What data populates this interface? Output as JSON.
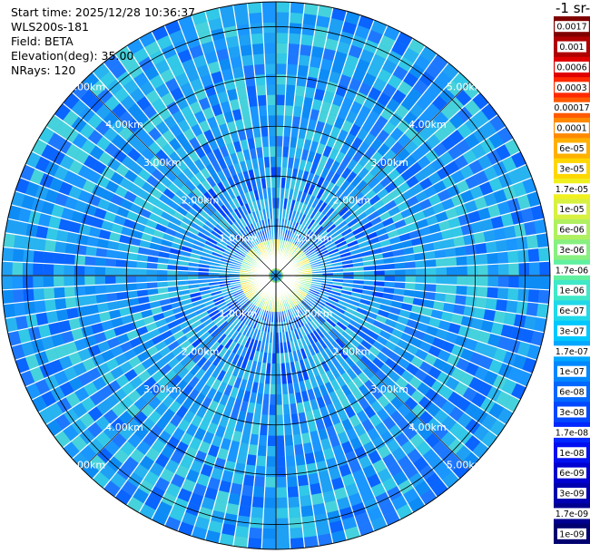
{
  "header": {
    "start_time": "Start time: 2025/12/28 10:36:37",
    "instrument": "WLS200s-181",
    "field": "Field: BETA",
    "elevation": "Elevation(deg): 35.00",
    "nrays": "NRays: 120"
  },
  "colorbar": {
    "title": "-1 sr-",
    "ticks": [
      "0.0017",
      "0.001",
      "0.0006",
      "0.0003",
      "0.00017",
      "0.0001",
      "6e-05",
      "3e-05",
      "1.7e-05",
      "1e-05",
      "6e-06",
      "3e-06",
      "1.7e-06",
      "1e-06",
      "6e-07",
      "3e-07",
      "1.7e-07",
      "1e-07",
      "6e-08",
      "3e-08",
      "1.7e-08",
      "1e-08",
      "6e-09",
      "3e-09",
      "1.7e-09",
      "1e-09"
    ],
    "colors": [
      "#800000",
      "#b00000",
      "#e00000",
      "#ff2a00",
      "#ff5a00",
      "#ff8a00",
      "#ffb000",
      "#ffd700",
      "#f0f020",
      "#d8f040",
      "#b0f060",
      "#88f080",
      "#60f0a0",
      "#40e8c8",
      "#20d8e8",
      "#00c8ff",
      "#00a8ff",
      "#0088ff",
      "#0068ff",
      "#0048ff",
      "#0028ff",
      "#0010f0",
      "#0000d0",
      "#0000b0",
      "#000090",
      "#000070"
    ]
  },
  "chart_data": {
    "type": "heatmap",
    "projection": "polar PPI",
    "field": "BETA",
    "n_rays": 120,
    "elevation_deg": 35.0,
    "range_max_km": 5.5,
    "range_rings_km": [
      1,
      2,
      3,
      4,
      5
    ],
    "ring_labels": [
      "1.00km",
      "2.00km",
      "3.00km",
      "4.00km",
      "5.00km"
    ],
    "dominant_value_range": "1e-07 to 6e-06",
    "near_center_value_range": "3e-06 to 1.7e-05",
    "scale": "log",
    "colorbar_min": "1e-09",
    "colorbar_max": "0.0017"
  }
}
